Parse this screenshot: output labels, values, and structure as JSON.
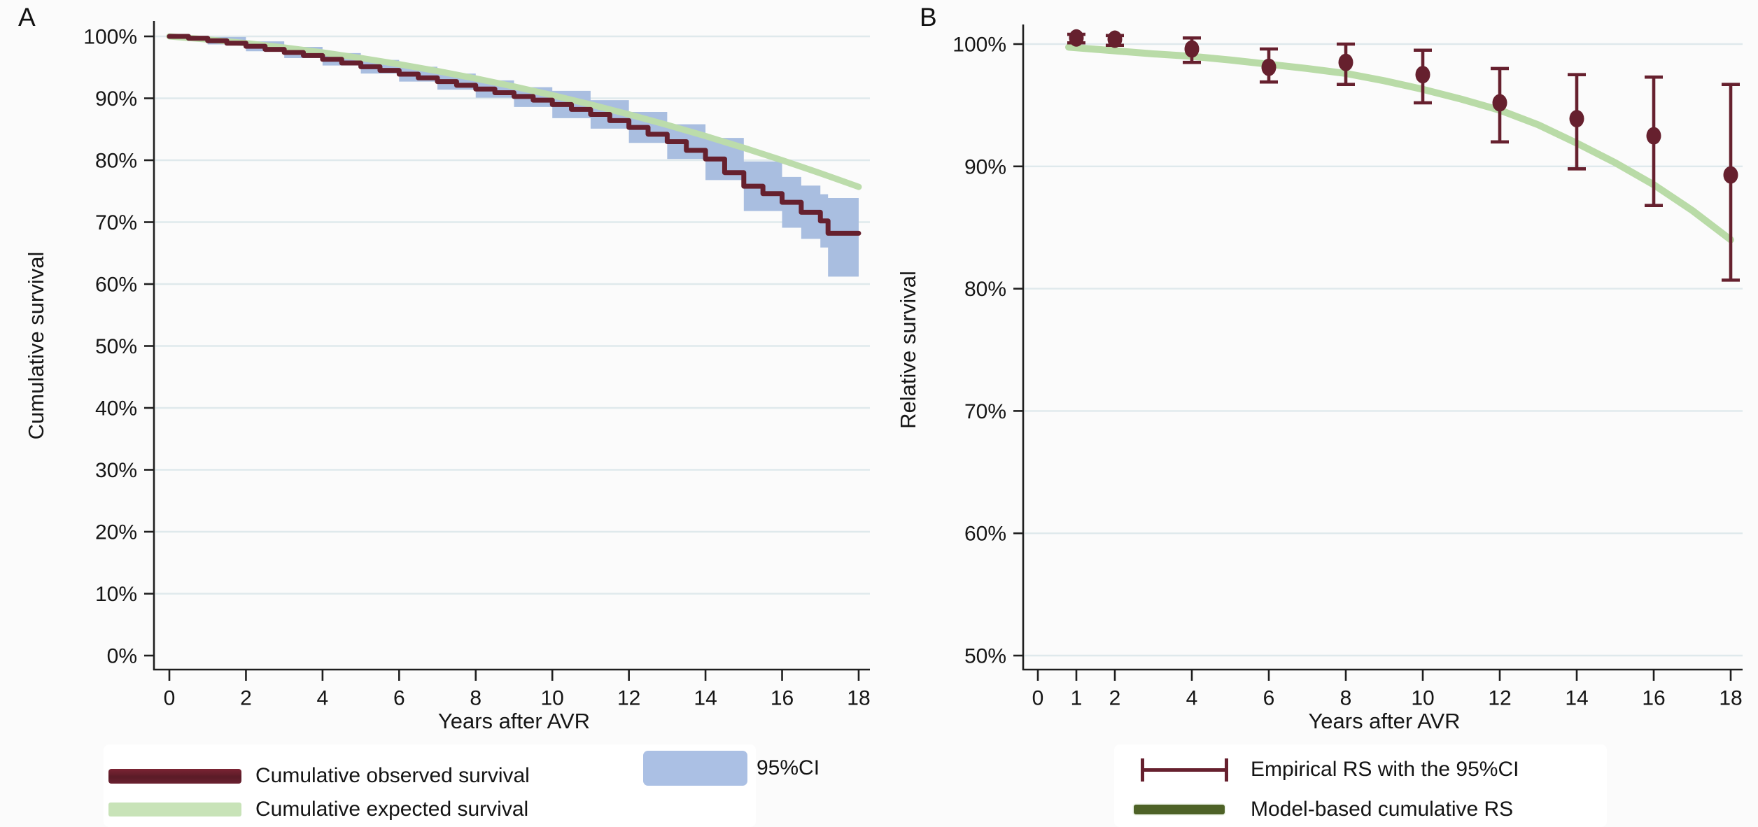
{
  "panel_letters": {
    "a": "A",
    "b": "B"
  },
  "legend_a": {
    "observed": "Cumulative observed survival",
    "expected": "Cumulative expected survival",
    "ci": "95%CI"
  },
  "legend_b": {
    "empirical": "Empirical RS with the 95%CI",
    "model": "Model-based cumulative RS"
  },
  "colors": {
    "maroon": "#66202e",
    "light_green": "#bcdcab",
    "band_blue": "#a9bee0",
    "olive": "#4e6227",
    "grid": "#dfe9ec",
    "axis": "#1f1f1f",
    "text": "#161616"
  },
  "chart_data": [
    {
      "type": "line",
      "panel": "A",
      "xlabel": "Years after AVR",
      "ylabel": "Cumulative survival",
      "x_ticks": [
        0,
        2,
        4,
        6,
        8,
        10,
        12,
        14,
        16,
        18
      ],
      "x_tick_labels": [
        "0",
        "2",
        "4",
        "6",
        "8",
        "10",
        "12",
        "14",
        "16",
        "18"
      ],
      "y_ticks": [
        0,
        10,
        20,
        30,
        40,
        50,
        60,
        70,
        80,
        90,
        100
      ],
      "y_tick_labels": [
        "0%",
        "10%",
        "20%",
        "30%",
        "40%",
        "50%",
        "60%",
        "70%",
        "80%",
        "90%",
        "100%"
      ],
      "xlim": [
        0,
        18
      ],
      "ylim": [
        0,
        100
      ],
      "grid": "horizontal",
      "legend_position": "below",
      "series": [
        {
          "name": "95%CI",
          "type": "band",
          "step": true,
          "color": "#a9bee0",
          "x": [
            0.3,
            1,
            2,
            3,
            4,
            5,
            6,
            7,
            8,
            9,
            10,
            11,
            12,
            13,
            14,
            15,
            16,
            16.5,
            17,
            17.2,
            18
          ],
          "upper": [
            100,
            99.9,
            99.2,
            98.3,
            97.3,
            96.2,
            95.1,
            94.0,
            92.9,
            91.8,
            91.2,
            89.7,
            87.8,
            85.8,
            83.6,
            79.8,
            77.3,
            75.9,
            74.5,
            73.9,
            73.9
          ],
          "lower": [
            99.6,
            98.7,
            97.6,
            96.5,
            95.3,
            94.0,
            92.7,
            91.4,
            90.1,
            88.6,
            86.8,
            85.1,
            82.8,
            80.2,
            76.8,
            71.8,
            69.1,
            67.3,
            65.9,
            61.2,
            61.2
          ]
        },
        {
          "name": "Cumulative expected survival",
          "type": "line",
          "color": "#bcdcab",
          "width": 9,
          "x": [
            0,
            1,
            2,
            3,
            4,
            5,
            6,
            7,
            8,
            9,
            10,
            11,
            12,
            13,
            14,
            15,
            16,
            17,
            18
          ],
          "y": [
            100,
            99.5,
            98.9,
            98.2,
            97.4,
            96.5,
            95.5,
            94.4,
            93.2,
            91.9,
            90.5,
            89.0,
            87.4,
            85.7,
            83.9,
            82.0,
            80.0,
            77.9,
            75.7
          ]
        },
        {
          "name": "Cumulative observed survival",
          "type": "line",
          "step": true,
          "color": "#66202e",
          "width": 7,
          "x": [
            0,
            0.5,
            1,
            1.5,
            2,
            2.5,
            3,
            3.5,
            4,
            4.5,
            5,
            5.5,
            6,
            6.5,
            7,
            7.5,
            8,
            8.5,
            9,
            9.5,
            10,
            10.5,
            11,
            11.5,
            12,
            12.5,
            13,
            13.5,
            14,
            14.5,
            15,
            15.5,
            16,
            16.5,
            17,
            17.2,
            18
          ],
          "y": [
            100,
            99.7,
            99.3,
            98.9,
            98.4,
            97.9,
            97.4,
            96.9,
            96.3,
            95.7,
            95.1,
            94.5,
            93.9,
            93.3,
            92.7,
            92.1,
            91.5,
            90.9,
            90.3,
            89.7,
            89.0,
            88.2,
            87.4,
            86.4,
            85.3,
            84.2,
            83.0,
            81.6,
            80.2,
            78.0,
            75.8,
            74.6,
            73.2,
            71.6,
            70.2,
            68.2,
            68.2
          ]
        }
      ]
    },
    {
      "type": "scatter",
      "panel": "B",
      "xlabel": "Years after AVR",
      "ylabel": "Relative survival",
      "x_ticks": [
        0,
        1,
        2,
        4,
        6,
        8,
        10,
        12,
        14,
        16,
        18
      ],
      "x_tick_labels": [
        "0",
        "1",
        "2",
        "4",
        "6",
        "8",
        "10",
        "12",
        "14",
        "16",
        "18"
      ],
      "y_ticks": [
        50,
        60,
        70,
        80,
        90,
        100
      ],
      "y_tick_labels": [
        "50%",
        "60%",
        "70%",
        "80%",
        "90%",
        "100%"
      ],
      "xlim": [
        0,
        18
      ],
      "ylim": [
        50,
        100
      ],
      "grid": "horizontal",
      "legend_position": "below",
      "series": [
        {
          "name": "Model-based cumulative RS",
          "type": "line",
          "color": "#b9dba7",
          "width": 10,
          "x": [
            0.8,
            1,
            2,
            3,
            4,
            5,
            6,
            7,
            8,
            9,
            10,
            11,
            12,
            13,
            14,
            15,
            16,
            17,
            18
          ],
          "y": [
            99.75,
            99.7,
            99.45,
            99.2,
            99.0,
            98.7,
            98.35,
            98.0,
            97.6,
            97.0,
            96.3,
            95.5,
            94.6,
            93.4,
            91.9,
            90.3,
            88.5,
            86.4,
            84.0
          ]
        },
        {
          "name": "Empirical RS with the 95%CI",
          "type": "errorbar",
          "color": "#66202e",
          "x": [
            1,
            2,
            4,
            6,
            8,
            10,
            12,
            14,
            16,
            18
          ],
          "y": [
            100.5,
            100.4,
            99.6,
            98.1,
            98.5,
            97.5,
            95.2,
            93.9,
            92.5,
            89.3
          ],
          "lo": [
            100.1,
            99.9,
            98.5,
            96.9,
            96.7,
            95.2,
            92.0,
            89.8,
            86.8,
            80.7
          ],
          "hi": [
            100.8,
            100.7,
            100.5,
            99.6,
            100.0,
            99.5,
            98.0,
            97.5,
            97.3,
            96.7
          ]
        }
      ]
    }
  ]
}
